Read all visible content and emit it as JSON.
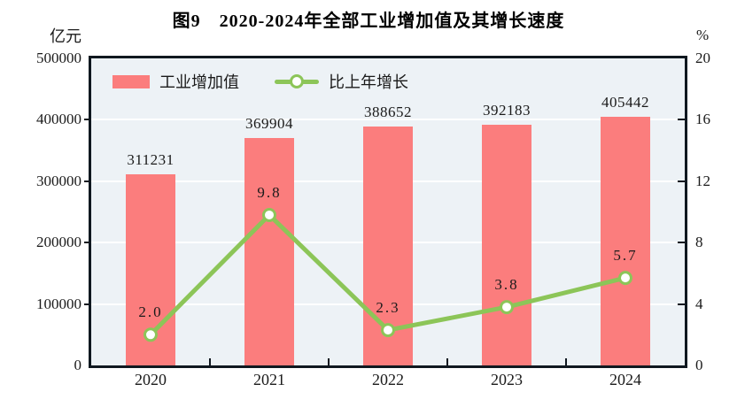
{
  "title": "图9　2020-2024年全部工业增加值及其增长速度",
  "chart_data": {
    "type": "bar",
    "subtype": "bar-line-combo",
    "categories": [
      "2020",
      "2021",
      "2022",
      "2023",
      "2024"
    ],
    "series": [
      {
        "name": "工业增加值",
        "type": "bar",
        "axis": "left",
        "values": [
          311231,
          369904,
          388652,
          392183,
          405442
        ],
        "value_labels": [
          "311231",
          "369904",
          "388652",
          "392183",
          "405442"
        ],
        "color": "#FB7D7D"
      },
      {
        "name": "比上年增长",
        "type": "line",
        "axis": "right",
        "values": [
          2.0,
          9.8,
          2.3,
          3.8,
          5.7
        ],
        "value_labels": [
          "2.0",
          "9.8",
          "2.3",
          "3.8",
          "5.7"
        ],
        "color": "#8CC558",
        "marker": "circle-white-fill"
      }
    ],
    "left_axis": {
      "unit": "亿元",
      "min": 0,
      "max": 500000,
      "tick_step": 100000,
      "tick_labels": [
        "0",
        "100000",
        "200000",
        "300000",
        "400000",
        "500000"
      ]
    },
    "right_axis": {
      "unit": "%",
      "min": 0,
      "max": 20,
      "tick_step": 4,
      "tick_labels": [
        "0",
        "4",
        "8",
        "12",
        "16",
        "20"
      ]
    },
    "legend_position": "top-left-inside",
    "grid": "horizontal-white",
    "colors": {
      "plot_bg": "#EDF2F6",
      "frame": "#101820",
      "grid": "#FFFFFF",
      "text": "#1A1A1A"
    }
  }
}
